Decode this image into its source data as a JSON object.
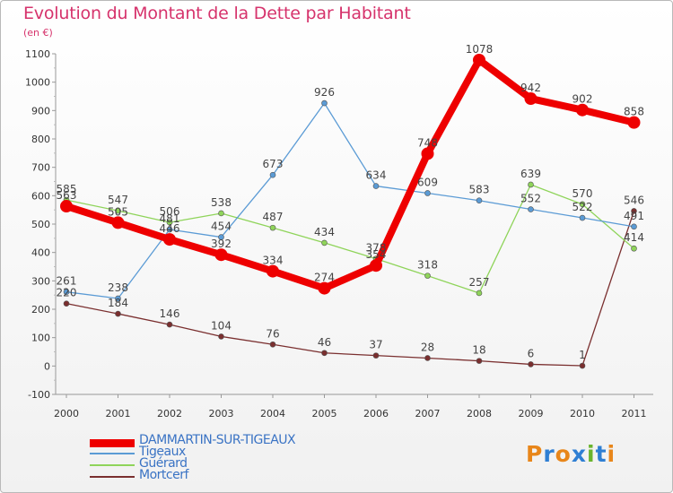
{
  "header": {
    "title": "Evolution du Montant de la Dette par Habitant",
    "subtitle": "(en €)"
  },
  "logo": {
    "text": "Proxiti",
    "colors": [
      "#e8861a",
      "#2f7fd3",
      "#e8861a",
      "#2f7fd3",
      "#6ab42d",
      "#2f7fd3",
      "#e8861a"
    ]
  },
  "chart_data": {
    "type": "line",
    "x": [
      "2000",
      "2001",
      "2002",
      "2003",
      "2004",
      "2005",
      "2006",
      "2007",
      "2008",
      "2009",
      "2010",
      "2011"
    ],
    "ylim": [
      -100,
      1100
    ],
    "yticks": [
      "-100",
      "0",
      "100",
      "200",
      "300",
      "400",
      "500",
      "600",
      "700",
      "800",
      "900",
      "1000",
      "1100"
    ],
    "grid": false,
    "legend_position": "bottom-left",
    "series": [
      {
        "name": "DAMMARTIN-SUR-TIGEAUX",
        "color": "#ee0000",
        "values": [
          563,
          505,
          446,
          392,
          334,
          274,
          354,
          748,
          1078,
          942,
          902,
          858
        ],
        "labels": [
          "563",
          "505",
          "446",
          "392",
          "334",
          "274",
          "354",
          "748",
          "1078",
          "942",
          "902",
          "858"
        ]
      },
      {
        "name": "Tigeaux",
        "color": "#5b9bd5",
        "values": [
          261,
          238,
          481,
          454,
          673,
          926,
          634,
          609,
          583,
          552,
          522,
          491
        ],
        "labels": [
          "261",
          "238",
          "481",
          "454",
          "673",
          "926",
          "634",
          "609",
          "583",
          "552",
          "522",
          "491"
        ]
      },
      {
        "name": "Guérard",
        "color": "#8fd45a",
        "values": [
          585,
          547,
          506,
          538,
          487,
          434,
          378,
          318,
          257,
          639,
          570,
          414
        ],
        "labels": [
          "585",
          "547",
          "506",
          "538",
          "487",
          "434",
          "378",
          "318",
          "257",
          "639",
          "570",
          "414"
        ]
      },
      {
        "name": "Mortcerf",
        "color": "#7a2f2f",
        "values": [
          220,
          184,
          146,
          104,
          76,
          46,
          37,
          28,
          18,
          6,
          1,
          546
        ],
        "labels": [
          "220",
          "184",
          "146",
          "104",
          "76",
          "46",
          "37",
          "28",
          "18",
          "6",
          "1",
          "546"
        ]
      }
    ]
  }
}
